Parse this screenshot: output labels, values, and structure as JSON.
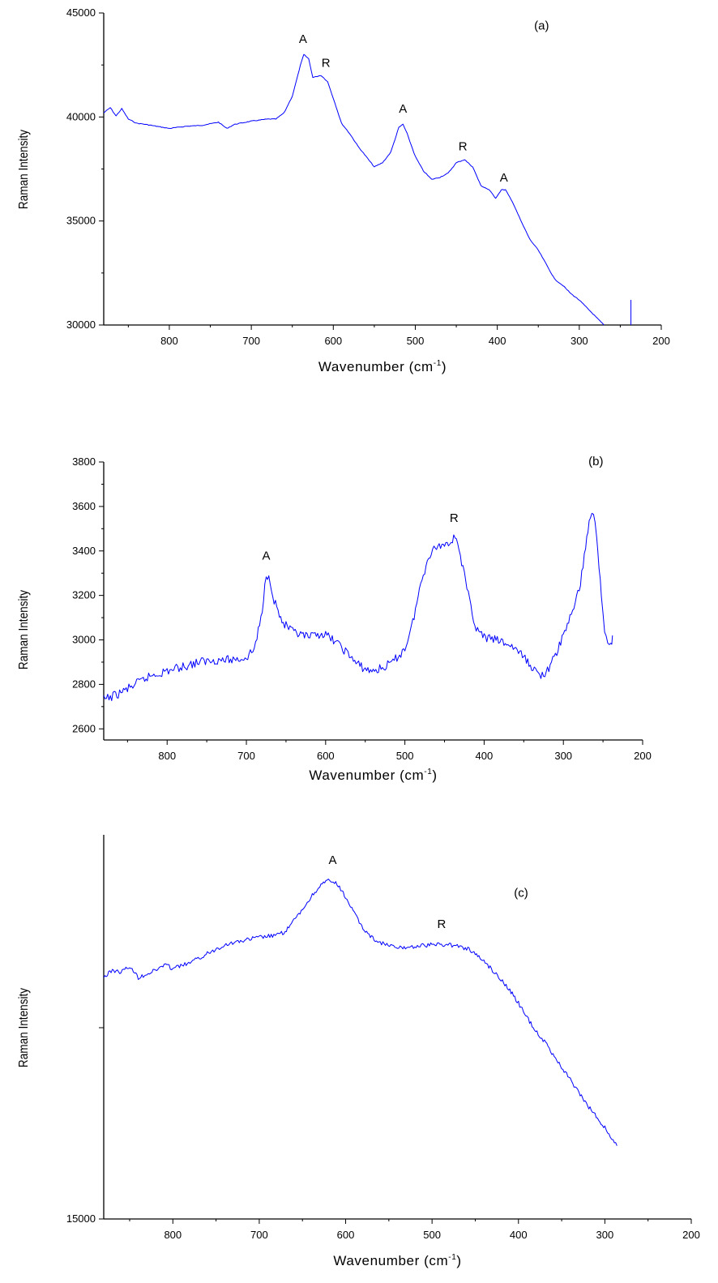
{
  "chart_data": [
    {
      "type": "line",
      "panel_label": "(a)",
      "xlabel": "Wavenumber (cm",
      "xlabel_sup": "-1",
      "xlabel_end": ")",
      "ylabel": "Raman Intensity",
      "xlim": [
        880,
        200
      ],
      "ylim": [
        30000,
        45000
      ],
      "x_ticks": [
        "800",
        "700",
        "600",
        "500",
        "400",
        "300",
        "200"
      ],
      "y_ticks": [
        "30000",
        "35000",
        "40000",
        "45000"
      ],
      "series": [
        {
          "color": "#0000ff",
          "points": [
            [
              880,
              40200
            ],
            [
              872,
              40450
            ],
            [
              865,
              40050
            ],
            [
              858,
              40400
            ],
            [
              850,
              39900
            ],
            [
              840,
              39700
            ],
            [
              830,
              39650
            ],
            [
              800,
              39450
            ],
            [
              780,
              39550
            ],
            [
              760,
              39600
            ],
            [
              740,
              39750
            ],
            [
              730,
              39450
            ],
            [
              720,
              39650
            ],
            [
              700,
              39800
            ],
            [
              680,
              39900
            ],
            [
              670,
              39900
            ],
            [
              660,
              40200
            ],
            [
              650,
              41000
            ],
            [
              640,
              42500
            ],
            [
              636,
              43000
            ],
            [
              630,
              42800
            ],
            [
              625,
              41900
            ],
            [
              615,
              42000
            ],
            [
              607,
              41700
            ],
            [
              600,
              40900
            ],
            [
              590,
              39700
            ],
            [
              580,
              39200
            ],
            [
              570,
              38600
            ],
            [
              560,
              38100
            ],
            [
              550,
              37600
            ],
            [
              540,
              37800
            ],
            [
              530,
              38300
            ],
            [
              520,
              39500
            ],
            [
              515,
              39650
            ],
            [
              510,
              39200
            ],
            [
              500,
              38100
            ],
            [
              490,
              37400
            ],
            [
              480,
              37000
            ],
            [
              470,
              37100
            ],
            [
              460,
              37300
            ],
            [
              450,
              37800
            ],
            [
              440,
              37950
            ],
            [
              430,
              37600
            ],
            [
              420,
              36700
            ],
            [
              410,
              36500
            ],
            [
              402,
              36100
            ],
            [
              395,
              36500
            ],
            [
              390,
              36500
            ],
            [
              380,
              35800
            ],
            [
              370,
              34900
            ],
            [
              360,
              34100
            ],
            [
              350,
              33600
            ],
            [
              340,
              32900
            ],
            [
              330,
              32200
            ],
            [
              320,
              31900
            ],
            [
              310,
              31500
            ],
            [
              300,
              31200
            ],
            [
              290,
              30800
            ],
            [
              280,
              30400
            ],
            [
              270,
              30000
            ]
          ]
        }
      ],
      "annotations": [
        {
          "text": "A",
          "x": 637,
          "y": 43550
        },
        {
          "text": "R",
          "x": 609,
          "y": 42400
        },
        {
          "text": "A",
          "x": 515,
          "y": 40200
        },
        {
          "text": "R",
          "x": 442,
          "y": 38400
        },
        {
          "text": "A",
          "x": 392,
          "y": 36900
        },
        {
          "text": "(a)",
          "x": 346,
          "y": 44200
        }
      ]
    },
    {
      "type": "line",
      "panel_label": "(b)",
      "xlabel": "Wavenumber (cm",
      "xlabel_sup": "-1",
      "xlabel_end": ")",
      "ylabel": "Raman Intensity",
      "xlim": [
        880,
        200
      ],
      "ylim": [
        2550,
        3800
      ],
      "x_ticks": [
        "800",
        "700",
        "600",
        "500",
        "400",
        "300",
        "200"
      ],
      "y_ticks": [
        "2600",
        "2800",
        "3000",
        "3200",
        "3400",
        "3600",
        "3800"
      ],
      "series": [
        {
          "color": "#0000ff",
          "points": [
            [
              880,
              2730
            ],
            [
              860,
              2760
            ],
            [
              840,
              2800
            ],
            [
              820,
              2840
            ],
            [
              800,
              2860
            ],
            [
              780,
              2880
            ],
            [
              760,
              2900
            ],
            [
              740,
              2910
            ],
            [
              720,
              2910
            ],
            [
              700,
              2920
            ],
            [
              690,
              2960
            ],
            [
              680,
              3120
            ],
            [
              675,
              3300
            ],
            [
              670,
              3270
            ],
            [
              665,
              3180
            ],
            [
              655,
              3080
            ],
            [
              640,
              3030
            ],
            [
              620,
              3010
            ],
            [
              605,
              3030
            ],
            [
              590,
              3000
            ],
            [
              575,
              2950
            ],
            [
              560,
              2890
            ],
            [
              545,
              2860
            ],
            [
              530,
              2870
            ],
            [
              515,
              2900
            ],
            [
              500,
              2960
            ],
            [
              490,
              3080
            ],
            [
              480,
              3250
            ],
            [
              470,
              3380
            ],
            [
              460,
              3420
            ],
            [
              450,
              3430
            ],
            [
              440,
              3450
            ],
            [
              435,
              3470
            ],
            [
              430,
              3380
            ],
            [
              420,
              3200
            ],
            [
              410,
              3050
            ],
            [
              400,
              3010
            ],
            [
              385,
              3000
            ],
            [
              370,
              2980
            ],
            [
              360,
              2960
            ],
            [
              350,
              2920
            ],
            [
              340,
              2880
            ],
            [
              330,
              2840
            ],
            [
              320,
              2860
            ],
            [
              310,
              2930
            ],
            [
              300,
              3020
            ],
            [
              290,
              3120
            ],
            [
              280,
              3220
            ],
            [
              272,
              3420
            ],
            [
              266,
              3560
            ],
            [
              262,
              3580
            ],
            [
              258,
              3450
            ],
            [
              252,
              3200
            ],
            [
              248,
              3050
            ],
            [
              244,
              2990
            ],
            [
              240,
              2980
            ],
            [
              238,
              3020
            ]
          ]
        }
      ],
      "annotations": [
        {
          "text": "A",
          "x": 675,
          "y": 3360
        },
        {
          "text": "R",
          "x": 438,
          "y": 3530
        },
        {
          "text": "(b)",
          "x": 259,
          "y": 3785
        }
      ]
    },
    {
      "type": "line",
      "panel_label": "(c)",
      "xlabel": "Wavenumber (cm",
      "xlabel_sup": "-1",
      "xlabel_end": ")",
      "ylabel": "Raman Intensity",
      "xlim": [
        880,
        200
      ],
      "ylim": [
        15000,
        36000
      ],
      "x_ticks": [
        "800",
        "700",
        "600",
        "500",
        "400",
        "300",
        "200"
      ],
      "y_ticks": [
        "15000"
      ],
      "series": [
        {
          "color": "#0000ff",
          "points": [
            [
              880,
              28200
            ],
            [
              870,
              28600
            ],
            [
              860,
              28500
            ],
            [
              850,
              28800
            ],
            [
              840,
              28200
            ],
            [
              830,
              28400
            ],
            [
              820,
              28600
            ],
            [
              810,
              28900
            ],
            [
              800,
              28700
            ],
            [
              780,
              29000
            ],
            [
              760,
              29500
            ],
            [
              740,
              30000
            ],
            [
              720,
              30200
            ],
            [
              700,
              30400
            ],
            [
              680,
              30500
            ],
            [
              670,
              30700
            ],
            [
              660,
              31300
            ],
            [
              650,
              31900
            ],
            [
              640,
              32600
            ],
            [
              630,
              33200
            ],
            [
              620,
              33500
            ],
            [
              610,
              33300
            ],
            [
              600,
              32600
            ],
            [
              590,
              31700
            ],
            [
              580,
              30900
            ],
            [
              570,
              30400
            ],
            [
              560,
              30100
            ],
            [
              540,
              29800
            ],
            [
              520,
              29900
            ],
            [
              500,
              30000
            ],
            [
              480,
              30000
            ],
            [
              460,
              29800
            ],
            [
              450,
              29500
            ],
            [
              440,
              29100
            ],
            [
              430,
              28600
            ],
            [
              420,
              28100
            ],
            [
              410,
              27500
            ],
            [
              400,
              26800
            ],
            [
              390,
              26000
            ],
            [
              380,
              25300
            ],
            [
              370,
              24700
            ],
            [
              360,
              24000
            ],
            [
              350,
              23300
            ],
            [
              340,
              22600
            ],
            [
              330,
              21900
            ],
            [
              320,
              21200
            ],
            [
              310,
              20600
            ],
            [
              300,
              20000
            ],
            [
              292,
              19400
            ],
            [
              286,
              19000
            ]
          ]
        }
      ],
      "annotations": [
        {
          "text": "A",
          "x": 615,
          "y": 34400
        },
        {
          "text": "R",
          "x": 489,
          "y": 30900
        },
        {
          "text": "(c)",
          "x": 397,
          "y": 32600
        }
      ]
    }
  ]
}
